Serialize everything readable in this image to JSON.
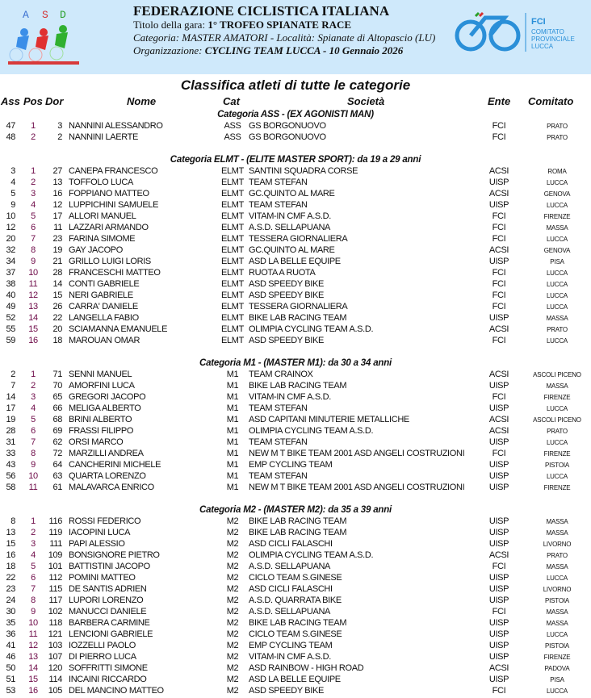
{
  "header": {
    "federation": "FEDERAZIONE  CICLISTICA ITALIANA",
    "race_title_label": "Titolo della gara: ",
    "race_title": "1° TROFEO SPIANATE RACE",
    "category_label": "Categoria: MASTER AMATORI - Località: Spianate di Altopascio (LU)",
    "organization_label": "Organizzazione: ",
    "organization": "CYCLING TEAM LUCCA - 10 Gennaio 2026",
    "logo_left_text": "ASD",
    "logo_right_text": [
      "FCI",
      "COMITATO",
      "PROVINCIALE",
      "LUCCA"
    ]
  },
  "title": "Classifica atleti di tutte le categorie",
  "columns": {
    "ass": "Ass",
    "pos": "Pos",
    "dor": "Dor",
    "nome": "Nome",
    "cat": "Cat",
    "societa": "Società",
    "ente": "Ente",
    "comitato": "Comitato"
  },
  "colors": {
    "header_bg": "#cfe9fb",
    "pos_text": "#6e0a48"
  },
  "categories": [
    {
      "heading": "Categoria ASS - (EX AGONISTI MAN)",
      "rows": [
        [
          "47",
          "1",
          "3",
          "NANNINI ALESSANDRO",
          "ASS",
          "GS BORGONUOVO",
          "FCI",
          "PRATO"
        ],
        [
          "48",
          "2",
          "2",
          "NANNINI LAERTE",
          "ASS",
          "GS BORGONUOVO",
          "FCI",
          "PRATO"
        ]
      ]
    },
    {
      "heading": "Categoria ELMT - (ELITE MASTER SPORT): da 19 a 29 anni",
      "rows": [
        [
          "3",
          "1",
          "27",
          "CANEPA FRANCESCO",
          "ELMT",
          "SANTINI SQUADRA CORSE",
          "ACSI",
          "ROMA"
        ],
        [
          "4",
          "2",
          "13",
          "TOFFOLO LUCA",
          "ELMT",
          "TEAM STEFAN",
          "UISP",
          "LUCCA"
        ],
        [
          "5",
          "3",
          "16",
          "FOPPIANO MATTEO",
          "ELMT",
          "GC.QUINTO AL MARE",
          "ACSI",
          "GENOVA"
        ],
        [
          "9",
          "4",
          "12",
          "LUPPICHINI SAMUELE",
          "ELMT",
          "TEAM STEFAN",
          "UISP",
          "LUCCA"
        ],
        [
          "10",
          "5",
          "17",
          "ALLORI MANUEL",
          "ELMT",
          "VITAM-IN CMF A.S.D.",
          "FCI",
          "FIRENZE"
        ],
        [
          "12",
          "6",
          "11",
          "LAZZARI ARMANDO",
          "ELMT",
          "A.S.D. SELLAPUANA",
          "FCI",
          "MASSA"
        ],
        [
          "20",
          "7",
          "23",
          "FARINA SIMOME",
          "ELMT",
          "TESSERA GIORNALIERA",
          "FCI",
          "LUCCA"
        ],
        [
          "32",
          "8",
          "19",
          "GAY JACOPO",
          "ELMT",
          "GC.QUINTO AL MARE",
          "ACSI",
          "GENOVA"
        ],
        [
          "34",
          "9",
          "21",
          "GRILLO LUIGI LORIS",
          "ELMT",
          "ASD LA BELLE EQUIPE",
          "UISP",
          "PISA"
        ],
        [
          "37",
          "10",
          "28",
          "FRANCESCHI MATTEO",
          "ELMT",
          "RUOTA A RUOTA",
          "FCI",
          "LUCCA"
        ],
        [
          "38",
          "11",
          "14",
          "CONTI GABRIELE",
          "ELMT",
          "ASD SPEEDY BIKE",
          "FCI",
          "LUCCA"
        ],
        [
          "40",
          "12",
          "15",
          "NERI GABRIELE",
          "ELMT",
          "ASD SPEEDY BIKE",
          "FCI",
          "LUCCA"
        ],
        [
          "49",
          "13",
          "26",
          "CARRA' DANIELE",
          "ELMT",
          "TESSERA GIORNALIERA",
          "FCI",
          "LUCCA"
        ],
        [
          "52",
          "14",
          "22",
          "LANGELLA FABIO",
          "ELMT",
          "BIKE LAB RACING TEAM",
          "UISP",
          "MASSA"
        ],
        [
          "55",
          "15",
          "20",
          "SCIAMANNA EMANUELE",
          "ELMT",
          "OLIMPIA CYCLING TEAM  A.S.D.",
          "ACSI",
          "PRATO"
        ],
        [
          "59",
          "16",
          "18",
          "MAROUAN OMAR",
          "ELMT",
          "ASD SPEEDY BIKE",
          "FCI",
          "LUCCA"
        ]
      ]
    },
    {
      "heading": "Categoria M1 - (MASTER M1): da 30 a 34 anni",
      "rows": [
        [
          "2",
          "1",
          "71",
          "SENNI MANUEL",
          "M1",
          "TEAM CRAINOX",
          "ACSI",
          "ASCOLI PICENO"
        ],
        [
          "7",
          "2",
          "70",
          "AMORFINI LUCA",
          "M1",
          "BIKE LAB RACING TEAM",
          "UISP",
          "MASSA"
        ],
        [
          "14",
          "3",
          "65",
          "GREGORI JACOPO",
          "M1",
          "VITAM-IN CMF A.S.D.",
          "FCI",
          "FIRENZE"
        ],
        [
          "17",
          "4",
          "66",
          "MELIGA ALBERTO",
          "M1",
          "TEAM STEFAN",
          "UISP",
          "LUCCA"
        ],
        [
          "19",
          "5",
          "68",
          "BRINI ALBERTO",
          "M1",
          "ASD CAPITANI MINUTERIE METALLICHE",
          "ACSI",
          "ASCOLI PICENO"
        ],
        [
          "28",
          "6",
          "69",
          "FRASSI FILIPPO",
          "M1",
          "OLIMPIA CYCLING TEAM  A.S.D.",
          "ACSI",
          "PRATO"
        ],
        [
          "31",
          "7",
          "62",
          "ORSI MARCO",
          "M1",
          "TEAM STEFAN",
          "UISP",
          "LUCCA"
        ],
        [
          "33",
          "8",
          "72",
          "MARZILLI ANDREA",
          "M1",
          "NEW M T BIKE TEAM 2001 ASD ANGELI COSTRUZIONI",
          "FCI",
          "FIRENZE"
        ],
        [
          "43",
          "9",
          "64",
          "CANCHERINI MICHELE",
          "M1",
          "EMP CYCLING TEAM",
          "UISP",
          "PISTOIA"
        ],
        [
          "56",
          "10",
          "63",
          "QUARTA LORENZO",
          "M1",
          "TEAM STEFAN",
          "UISP",
          "LUCCA"
        ],
        [
          "58",
          "11",
          "61",
          "MALAVARCA ENRICO",
          "M1",
          "NEW M T BIKE TEAM 2001 ASD ANGELI COSTRUZIONI",
          "UISP",
          "FIRENZE"
        ]
      ]
    },
    {
      "heading": "Categoria M2 - (MASTER M2): da 35 a 39 anni",
      "rows": [
        [
          "8",
          "1",
          "116",
          "ROSSI FEDERICO",
          "M2",
          "BIKE LAB RACING TEAM",
          "UISP",
          "MASSA"
        ],
        [
          "13",
          "2",
          "119",
          "IACOPINI LUCA",
          "M2",
          "BIKE LAB RACING TEAM",
          "UISP",
          "MASSA"
        ],
        [
          "15",
          "3",
          "111",
          "PAPI ALESSIO",
          "M2",
          "ASD CICLI FALASCHI",
          "UISP",
          "LIVORNO"
        ],
        [
          "16",
          "4",
          "109",
          "BONSIGNORE PIETRO",
          "M2",
          "OLIMPIA CYCLING TEAM  A.S.D.",
          "ACSI",
          "PRATO"
        ],
        [
          "18",
          "5",
          "101",
          "BATTISTINI JACOPO",
          "M2",
          "A.S.D. SELLAPUANA",
          "FCI",
          "MASSA"
        ],
        [
          "22",
          "6",
          "112",
          "POMINI MATTEO",
          "M2",
          "CICLO TEAM S.GINESE",
          "UISP",
          "LUCCA"
        ],
        [
          "23",
          "7",
          "115",
          "DE SANTIS ADRIEN",
          "M2",
          "ASD CICLI FALASCHI",
          "UISP",
          "LIVORNO"
        ],
        [
          "24",
          "8",
          "117",
          "LUPORI LORENZO",
          "M2",
          "A.S.D. QUARRATA BIKE",
          "UISP",
          "PISTOIA"
        ],
        [
          "30",
          "9",
          "102",
          "MANUCCI DANIELE",
          "M2",
          "A.S.D. SELLAPUANA",
          "FCI",
          "MASSA"
        ],
        [
          "35",
          "10",
          "118",
          "BARBERA CARMINE",
          "M2",
          "BIKE LAB RACING TEAM",
          "UISP",
          "MASSA"
        ],
        [
          "36",
          "11",
          "121",
          "LENCIONI GABRIELE",
          "M2",
          "CICLO TEAM S.GINESE",
          "UISP",
          "LUCCA"
        ],
        [
          "41",
          "12",
          "103",
          "IOZZELLI PAOLO",
          "M2",
          "EMP CYCLING TEAM",
          "UISP",
          "PISTOIA"
        ],
        [
          "46",
          "13",
          "107",
          "DI PIERRO LUCA",
          "M2",
          "VITAM-IN CMF A.S.D.",
          "UISP",
          "FIRENZE"
        ],
        [
          "50",
          "14",
          "120",
          "SOFFRITTI SIMONE",
          "M2",
          "ASD RAINBOW - HIGH ROAD",
          "ACSI",
          "PADOVA"
        ],
        [
          "51",
          "15",
          "114",
          "INCAINI RICCARDO",
          "M2",
          "ASD LA BELLE EQUIPE",
          "UISP",
          "PISA"
        ],
        [
          "53",
          "16",
          "105",
          "DEL MANCINO MATTEO",
          "M2",
          "ASD SPEEDY BIKE",
          "FCI",
          "LUCCA"
        ]
      ]
    }
  ]
}
